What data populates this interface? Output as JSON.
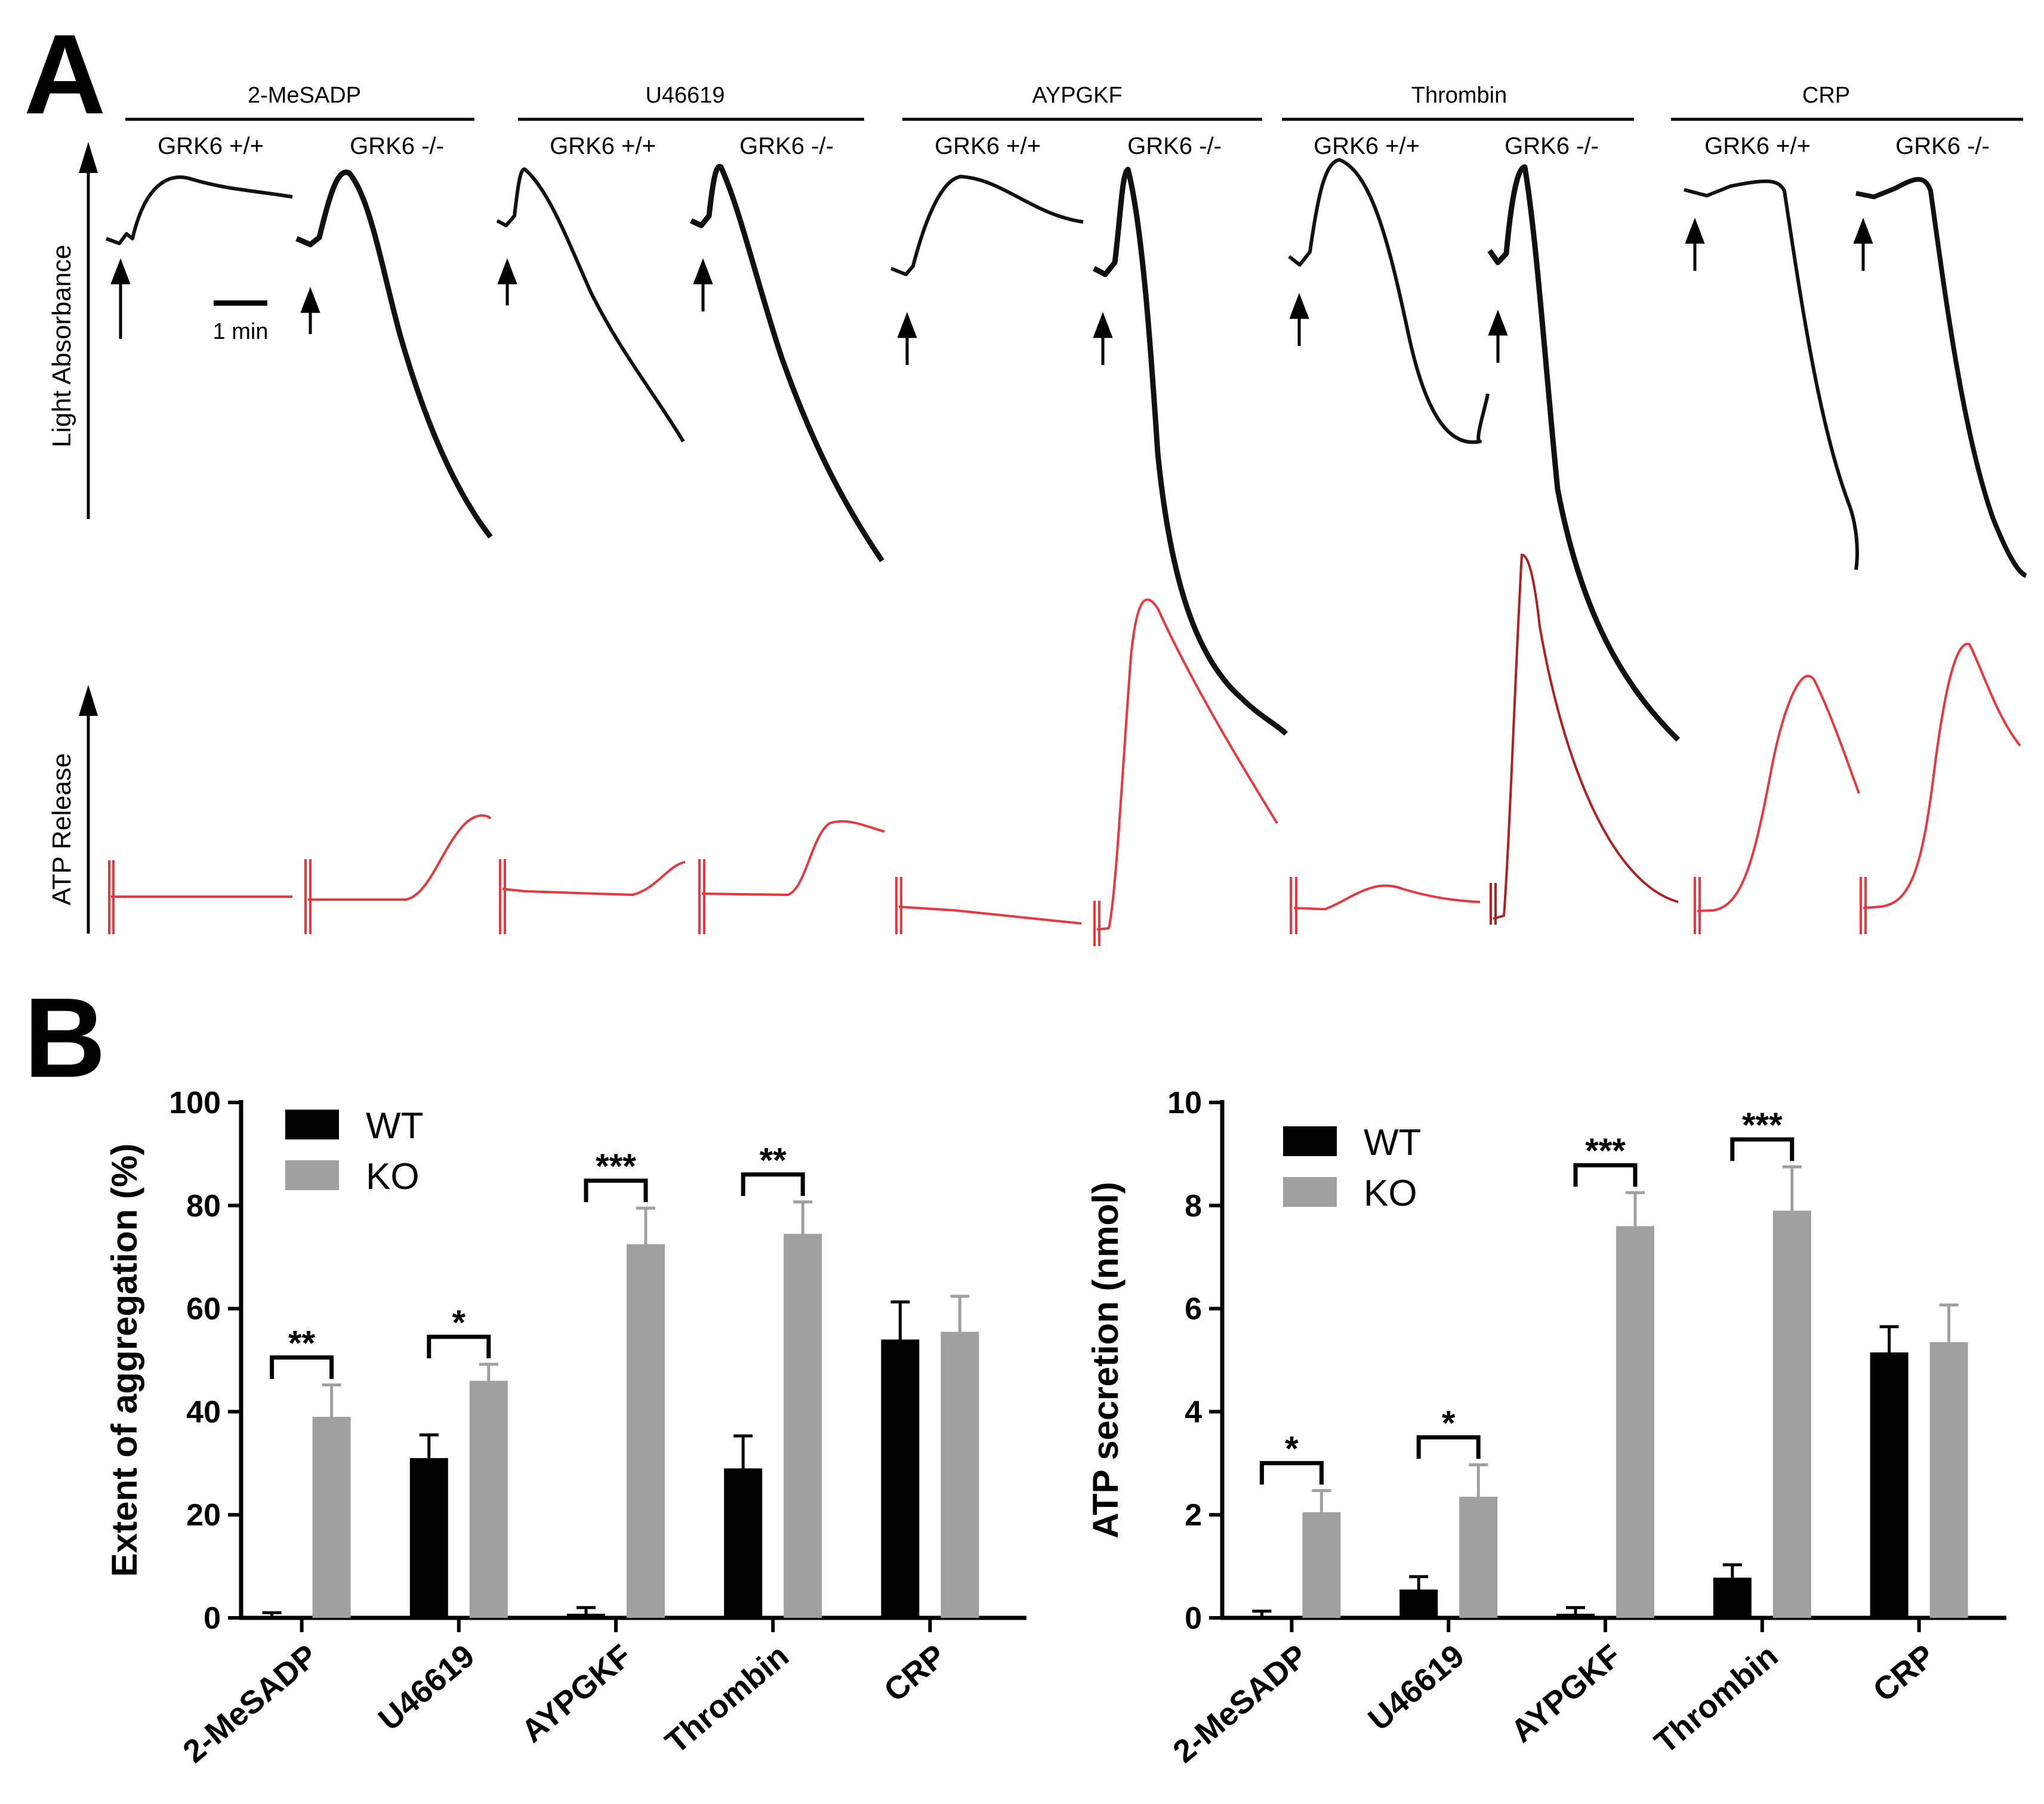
{
  "panel_a": {
    "letter": "A",
    "y_labels": {
      "top": "Light Absorbance",
      "bottom": "ATP Release"
    },
    "scale_bar": "1 min",
    "groups": [
      {
        "agonist": "2-MeSADP",
        "wt_label": "GRK6 +/+",
        "ko_label": "GRK6 -/-"
      },
      {
        "agonist": "U46619",
        "wt_label": "GRK6 +/+",
        "ko_label": "GRK6 -/-"
      },
      {
        "agonist": "AYPGKF",
        "wt_label": "GRK6 +/+",
        "ko_label": "GRK6 -/-"
      },
      {
        "agonist": "Thrombin",
        "wt_label": "GRK6 +/+",
        "ko_label": "GRK6 -/-"
      },
      {
        "agonist": "CRP",
        "wt_label": "GRK6 +/+",
        "ko_label": "GRK6 -/-"
      }
    ],
    "colors": {
      "aggregation": "#111111",
      "atp": "#e8383d"
    }
  },
  "panel_b": {
    "letter": "B"
  },
  "colors": {
    "wt": "#000000",
    "ko": "#a0a0a0"
  },
  "chart_data": [
    {
      "type": "bar",
      "title": "",
      "xlabel": "",
      "ylabel": "Extent of aggregation (%)",
      "ylim": [
        0,
        100
      ],
      "yticks": [
        "0",
        "20",
        "40",
        "60",
        "80",
        "100"
      ],
      "categories": [
        "2-MeSADP",
        "U46619",
        "AYPGKF",
        "Thrombin",
        "CRP"
      ],
      "series": [
        {
          "name": "WT",
          "values": [
            0.3,
            31,
            0.8,
            29,
            54
          ],
          "errors": [
            0.7,
            4.5,
            1.2,
            6.3,
            7.3
          ]
        },
        {
          "name": "KO",
          "values": [
            39,
            46,
            72.5,
            74.5,
            55.5
          ],
          "errors": [
            6.2,
            3.2,
            7.0,
            6.2,
            6.9
          ]
        }
      ],
      "significance": [
        "**",
        "*",
        "***",
        "**",
        ""
      ],
      "legend": [
        "WT",
        "KO"
      ]
    },
    {
      "type": "bar",
      "title": "",
      "xlabel": "",
      "ylabel": "ATP secretion (nmol)",
      "ylim": [
        0,
        10
      ],
      "yticks": [
        "0",
        "2",
        "4",
        "6",
        "8",
        "10"
      ],
      "categories": [
        "2-MeSADP",
        "U46619",
        "AYPGKF",
        "Thrombin",
        "CRP"
      ],
      "series": [
        {
          "name": "WT",
          "values": [
            0.03,
            0.55,
            0.08,
            0.78,
            5.15
          ],
          "errors": [
            0.1,
            0.25,
            0.12,
            0.25,
            0.5
          ]
        },
        {
          "name": "KO",
          "values": [
            2.05,
            2.35,
            7.6,
            7.9,
            5.35
          ],
          "errors": [
            0.42,
            0.62,
            0.65,
            0.85,
            0.72
          ]
        }
      ],
      "significance": [
        "*",
        "*",
        "***",
        "***",
        ""
      ],
      "legend": [
        "WT",
        "KO"
      ]
    }
  ]
}
